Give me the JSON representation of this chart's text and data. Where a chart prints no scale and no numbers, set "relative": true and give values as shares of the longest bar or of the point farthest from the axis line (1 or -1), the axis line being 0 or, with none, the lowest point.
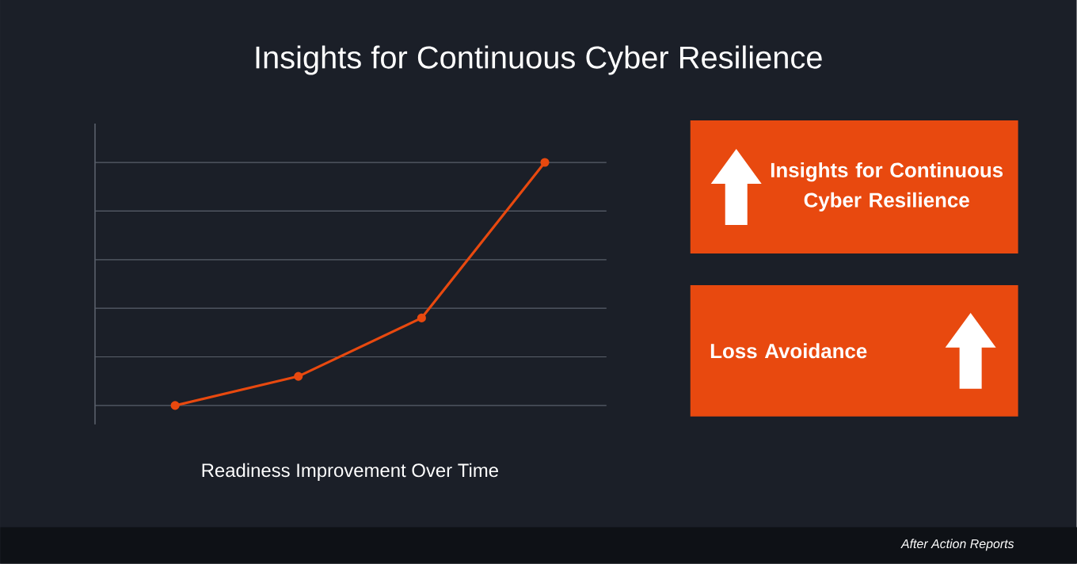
{
  "chart_data": [
    {
      "type": "line",
      "title": "Insights for Continuous Cyber Resilience",
      "xlabel": "Readiness Improvement Over Time",
      "categories": [
        null,
        null,
        null,
        null
      ],
      "series": [
        {
          "color": "#e8490f",
          "values": [
            0,
            0.12,
            0.36,
            1
          ]
        }
      ],
      "relative": true,
      "grid": "y",
      "marker": "circle",
      "annotations": [
        "After Action Reports"
      ]
    },
    {
      "type": "other",
      "annotations": [
        "Insights for Continuous Cyber Resilience",
        "Loss Avoidance"
      ]
    }
  ]
}
